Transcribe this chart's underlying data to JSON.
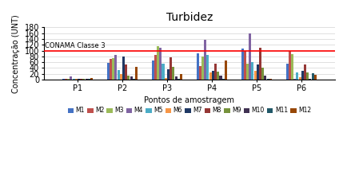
{
  "title": "Turbidez",
  "xlabel": "Pontos de amostragem",
  "ylabel": "Concentração (UNT)",
  "ylim": [
    0,
    180
  ],
  "yticks": [
    0,
    20,
    40,
    60,
    80,
    100,
    120,
    140,
    160,
    180
  ],
  "conama_line": 100,
  "conama_label": "CONAMA Classe 3",
  "points": [
    "P1",
    "P2",
    "P3",
    "P4",
    "P5",
    "P6"
  ],
  "months": [
    "M1",
    "M2",
    "M3",
    "M4",
    "M5",
    "M6",
    "M7",
    "M8",
    "M9",
    "M10",
    "M11",
    "M12"
  ],
  "colors": [
    "#4472c4",
    "#c0504d",
    "#9bbb59",
    "#8064a2",
    "#4bacc6",
    "#f79646",
    "#1f3864",
    "#953735",
    "#76923c",
    "#403152",
    "#215868",
    "#974706"
  ],
  "values": {
    "P1": [
      2,
      2,
      2,
      10,
      2,
      2,
      2,
      2,
      2,
      2,
      2,
      5
    ],
    "P2": [
      57,
      70,
      75,
      86,
      32,
      18,
      80,
      52,
      13,
      12,
      2,
      43
    ],
    "P3": [
      65,
      85,
      116,
      110,
      55,
      6,
      35,
      78,
      43,
      11,
      2,
      20
    ],
    "P4": [
      90,
      46,
      80,
      138,
      84,
      25,
      30,
      54,
      28,
      13,
      2,
      67
    ],
    "P5": [
      107,
      100,
      55,
      158,
      60,
      30,
      52,
      110,
      40,
      15,
      2,
      2
    ],
    "P6": [
      55,
      99,
      88,
      2,
      25,
      7,
      30,
      52,
      25,
      4,
      22,
      17
    ]
  }
}
